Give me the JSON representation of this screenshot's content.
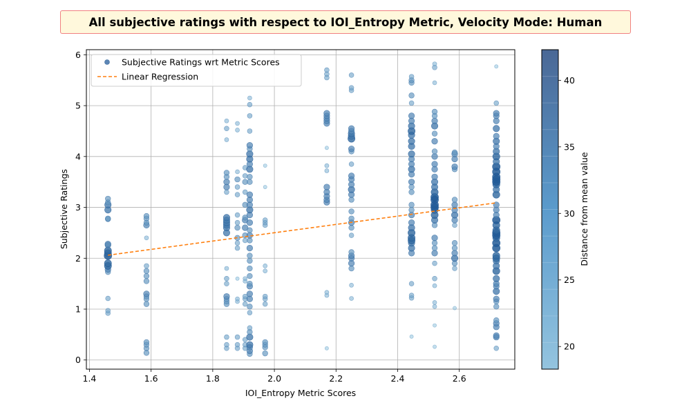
{
  "chart_data": {
    "type": "scatter",
    "title": "All subjective ratings with respect to IOI_Entropy Metric, Velocity Mode: Human",
    "xlabel": "IOI_Entropy Metric Scores",
    "ylabel": "Subjective Ratings",
    "xlim": [
      1.39,
      2.78
    ],
    "ylim": [
      -0.18,
      6.1
    ],
    "xticks": [
      "1.4",
      "1.6",
      "1.8",
      "2.0",
      "2.2",
      "2.4",
      "2.6"
    ],
    "xtick_values": [
      1.4,
      1.6,
      1.8,
      2.0,
      2.2,
      2.4,
      2.6
    ],
    "yticks": [
      "0",
      "1",
      "2",
      "3",
      "4",
      "5",
      "6"
    ],
    "ytick_values": [
      0,
      1,
      2,
      3,
      4,
      5,
      6
    ],
    "grid": true,
    "legend": {
      "placement": "top-left",
      "entries": [
        "Subjective Ratings wrt Metric Scores",
        "Linear Regression"
      ]
    },
    "colorbar": {
      "label": "Distance from mean value",
      "range": [
        18.3,
        42.3
      ],
      "ticks": [
        "20",
        "25",
        "30",
        "35",
        "40"
      ],
      "tick_values": [
        20,
        25,
        30,
        35,
        40
      ]
    },
    "colors": {
      "low": "#94c4df",
      "high": "#3a6b9e",
      "regression": "#ff7f0e",
      "grid": "#b0b0b0"
    },
    "regression": {
      "x": [
        1.46,
        2.72
      ],
      "y": [
        2.06,
        3.09
      ]
    },
    "columns": [
      {
        "x": 1.46,
        "y": [
          0.92,
          0.97,
          1.21,
          1.73,
          1.78,
          1.85,
          1.9,
          2.05,
          2.1,
          2.15,
          2.26,
          2.28,
          2.77,
          2.78,
          2.95,
          3.05,
          3.1,
          3.17
        ]
      },
      {
        "x": 1.585,
        "y": [
          0.14,
          0.23,
          0.3,
          0.35,
          1.1,
          1.2,
          1.25,
          1.3,
          1.55,
          1.65,
          1.75,
          1.85,
          2.4,
          2.65,
          2.7,
          2.78,
          2.83
        ]
      },
      {
        "x": 1.845,
        "y": [
          0.23,
          0.3,
          0.45,
          1.1,
          1.15,
          1.2,
          1.25,
          1.5,
          1.6,
          1.8,
          2.5,
          2.6,
          2.65,
          2.7,
          2.75,
          2.8,
          3.3,
          3.4,
          3.5,
          3.6,
          3.68,
          4.33,
          4.55,
          4.7
        ]
      },
      {
        "x": 1.88,
        "y": [
          0.23,
          0.3,
          0.45,
          1.15,
          1.2,
          1.6,
          2.2,
          2.3,
          2.4,
          2.6,
          2.7,
          2.85,
          3.25,
          3.4,
          3.55,
          3.7,
          4.52,
          4.65
        ]
      },
      {
        "x": 1.905,
        "y": [
          0.23,
          0.3,
          0.4,
          1.1,
          1.2,
          1.25,
          1.55,
          1.6,
          2.35,
          2.45,
          2.6,
          2.75,
          2.8,
          3.05,
          3.3,
          3.5,
          3.62,
          3.78
        ]
      },
      {
        "x": 1.92,
        "y": [
          0.12,
          0.18,
          0.25,
          0.3,
          0.45,
          0.55,
          0.63,
          0.93,
          1.05,
          1.2,
          1.3,
          1.45,
          1.5,
          1.65,
          1.8,
          1.95,
          2.05,
          2.2,
          2.35,
          2.45,
          2.55,
          2.7,
          2.85,
          2.95,
          3.05,
          3.15,
          3.25,
          3.5,
          3.6,
          3.75,
          3.85,
          3.95,
          4.05,
          4.15,
          4.22,
          4.5,
          4.8,
          5.02,
          5.15
        ]
      },
      {
        "x": 1.97,
        "y": [
          0.13,
          0.25,
          0.3,
          0.35,
          1.1,
          1.2,
          1.25,
          1.75,
          1.85,
          2.65,
          2.7,
          2.75,
          3.4,
          3.82
        ]
      },
      {
        "x": 2.17,
        "y": [
          0.23,
          1.27,
          1.33,
          3.1,
          3.15,
          3.22,
          3.3,
          3.4,
          3.72,
          3.82,
          4.17,
          4.65,
          4.7,
          4.75,
          4.8,
          4.85,
          5.55,
          5.62,
          5.7
        ]
      },
      {
        "x": 2.25,
        "y": [
          1.21,
          1.47,
          1.8,
          1.9,
          2.0,
          2.05,
          2.12,
          2.45,
          2.6,
          2.7,
          2.78,
          2.92,
          3.15,
          3.25,
          3.35,
          3.45,
          3.55,
          3.62,
          3.85,
          4.1,
          4.15,
          4.35,
          4.4,
          4.45,
          4.5,
          4.55,
          5.3,
          5.35,
          5.6
        ]
      },
      {
        "x": 2.445,
        "y": [
          0.46,
          1.22,
          1.27,
          1.5,
          2.1,
          2.2,
          2.3,
          2.35,
          2.4,
          2.5,
          2.6,
          2.7,
          2.85,
          2.95,
          3.05,
          3.3,
          3.4,
          3.5,
          3.65,
          3.75,
          3.85,
          3.95,
          4.05,
          4.2,
          4.3,
          4.42,
          4.5,
          4.6,
          4.7,
          4.8,
          5.05,
          5.2,
          5.45,
          5.5,
          5.57
        ]
      },
      {
        "x": 2.52,
        "y": [
          0.26,
          0.68,
          1.05,
          1.13,
          1.46,
          1.6,
          1.9,
          2.1,
          2.2,
          2.3,
          2.4,
          2.65,
          2.75,
          2.85,
          2.95,
          3.0,
          3.05,
          3.15,
          3.2,
          3.3,
          3.4,
          3.5,
          3.6,
          3.75,
          3.85,
          4.0,
          4.1,
          4.3,
          4.45,
          4.6,
          4.7,
          4.8,
          4.88,
          5.45,
          5.75,
          5.82
        ]
      },
      {
        "x": 2.585,
        "y": [
          1.02,
          1.8,
          1.9,
          2.0,
          2.1,
          2.2,
          2.3,
          2.65,
          2.75,
          2.85,
          2.95,
          3.05,
          3.15,
          3.75,
          3.8,
          3.95,
          4.05,
          4.08
        ]
      },
      {
        "x": 2.72,
        "y": [
          0.23,
          0.45,
          0.48,
          0.65,
          0.72,
          0.78,
          1.05,
          1.15,
          1.2,
          1.35,
          1.45,
          1.5,
          1.6,
          1.75,
          1.85,
          1.95,
          2.0,
          2.05,
          2.2,
          2.3,
          2.4,
          2.45,
          2.5,
          2.55,
          2.65,
          2.75,
          2.85,
          2.95,
          3.05,
          3.25,
          3.35,
          3.45,
          3.5,
          3.55,
          3.6,
          3.7,
          3.8,
          3.9,
          4.0,
          4.1,
          4.2,
          4.3,
          4.4,
          4.55,
          4.7,
          4.8,
          4.85,
          5.05,
          5.77
        ]
      }
    ]
  }
}
